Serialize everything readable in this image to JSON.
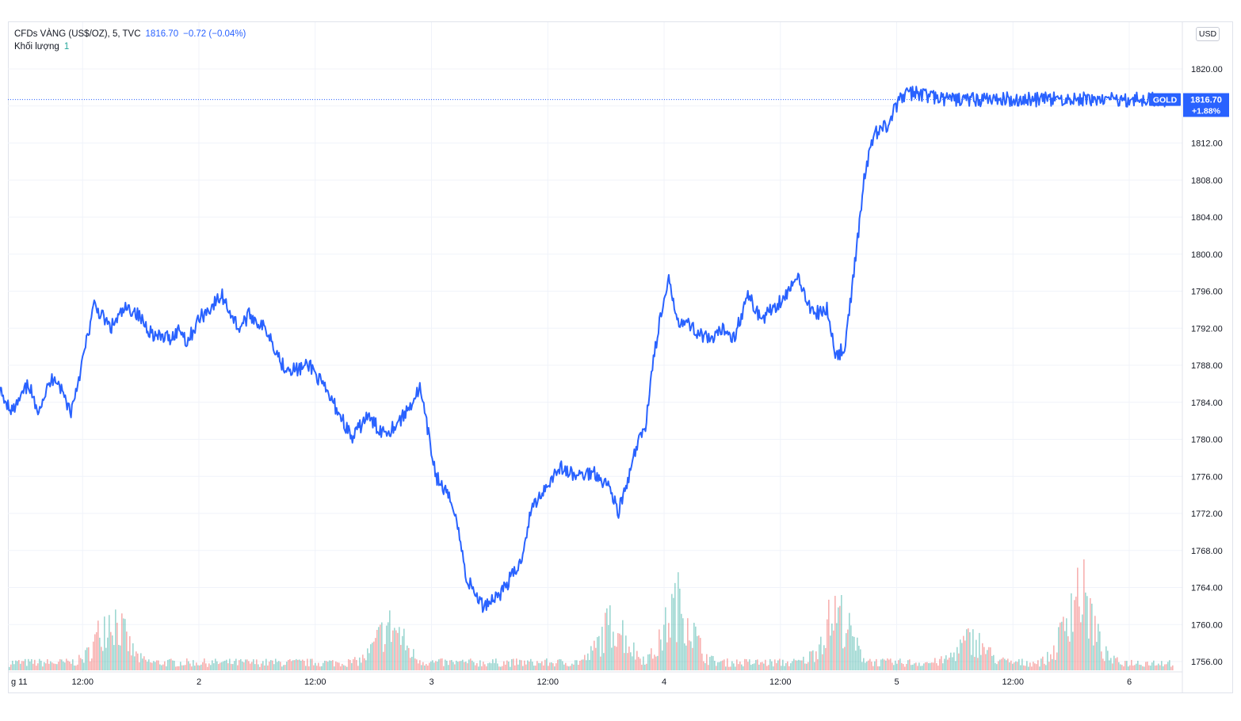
{
  "legend": {
    "symbol": "CFDs VÀNG (US$/OZ), 5, TVC",
    "last": "1816.70",
    "change": "−0.72 (−0.04%)",
    "volume_label": "Khối lượng",
    "volume_value": "1"
  },
  "currency": "USD",
  "price_tag": {
    "symbol": "GOLD",
    "price": "1816.70",
    "change": "+1.88%"
  },
  "colors": {
    "line": "#2962ff",
    "up_volume": "#26a69a",
    "down_volume": "#ef5350",
    "grid": "#f0f3fa"
  },
  "chart_data": {
    "type": "line",
    "title": "CFDs VÀNG (US$/OZ), 5, TVC",
    "xlabel": "",
    "ylabel": "",
    "ylim": [
      1755,
      1824
    ],
    "y_ticks": [
      "1756.00",
      "1760.00",
      "1764.00",
      "1768.00",
      "1772.00",
      "1776.00",
      "1780.00",
      "1784.00",
      "1788.00",
      "1792.00",
      "1796.00",
      "1800.00",
      "1804.00",
      "1808.00",
      "1812.00",
      "1816.00",
      "1820.00"
    ],
    "x_ticks": [
      {
        "label": "g 11",
        "t": 0
      },
      {
        "label": "12:00",
        "t": 0.5
      },
      {
        "label": "2",
        "t": 1
      },
      {
        "label": "12:00",
        "t": 1.5
      },
      {
        "label": "3",
        "t": 2
      },
      {
        "label": "12:00",
        "t": 2.5
      },
      {
        "label": "4",
        "t": 3
      },
      {
        "label": "12:00",
        "t": 3.5
      },
      {
        "label": "5",
        "t": 4
      },
      {
        "label": "12:00",
        "t": 4.5
      },
      {
        "label": "6",
        "t": 5
      }
    ],
    "x_range_days": [
      -0.13,
      5.22
    ],
    "series": [
      {
        "values_t": [
          -0.13,
          -0.06,
          -0.02,
          0.05,
          0.1,
          0.15,
          0.2,
          0.27,
          0.3,
          0.38,
          0.45,
          0.5,
          0.55,
          0.62,
          0.68,
          0.72,
          0.78,
          0.82,
          0.88,
          0.92,
          0.95,
          1.0,
          1.04,
          1.1,
          1.17,
          1.22,
          1.3,
          1.36,
          1.42,
          1.48,
          1.55,
          1.6,
          1.66,
          1.72,
          1.78,
          1.82,
          1.88,
          1.95,
          2.02,
          2.1,
          2.15,
          2.22,
          2.3,
          2.38,
          2.43,
          2.48,
          2.55,
          2.62,
          2.7,
          2.76,
          2.78,
          2.8,
          2.84,
          2.88,
          2.92,
          2.95,
          2.98,
          3.02,
          3.06,
          3.1,
          3.15,
          3.2,
          3.26,
          3.3,
          3.36,
          3.42,
          3.48,
          3.52,
          3.58,
          3.64,
          3.7,
          3.74,
          3.78,
          3.82,
          3.86,
          3.9,
          3.96,
          4.02,
          4.08,
          4.15,
          4.2,
          4.26,
          4.32,
          4.38,
          4.45,
          4.52,
          4.58,
          4.62,
          4.7,
          4.74,
          4.76,
          4.78,
          4.8,
          4.84,
          4.88,
          4.92,
          4.97,
          5.0,
          5.06,
          5.12,
          5.16
        ],
        "values": [
          1783,
          1780.5,
          1782,
          1786.5,
          1784,
          1785,
          1783,
          1786,
          1783,
          1787,
          1783,
          1788.5,
          1794.5,
          1792,
          1794,
          1794,
          1792,
          1791,
          1791,
          1792,
          1790.5,
          1793,
          1794,
          1795.5,
          1792,
          1793.5,
          1791.5,
          1788,
          1787.5,
          1788,
          1785,
          1783,
          1780,
          1782.5,
          1781,
          1781,
          1782.5,
          1785.5,
          1776,
          1772.5,
          1765,
          1762,
          1763.5,
          1766.5,
          1772.5,
          1774.5,
          1777,
          1776,
          1776.5,
          1775,
          1774,
          1772,
          1775,
          1779,
          1781.5,
          1788,
          1792.5,
          1797,
          1793,
          1792.5,
          1791.5,
          1790.5,
          1792,
          1791,
          1795.5,
          1793,
          1794.5,
          1795.5,
          1797.5,
          1793.5,
          1794,
          1789,
          1790,
          1799,
          1808,
          1813,
          1814,
          1817,
          1817.5,
          1817,
          1816.7,
          1816.7,
          1816.7,
          1816.7,
          1816.7,
          1816.7,
          1816.7,
          1816.7,
          1816.7,
          1816.7,
          1816.7,
          1816.7,
          1816.7,
          1816.7,
          1816.7,
          1816.7,
          1816.7,
          1816.7,
          1816.7,
          1816.7,
          1816.7
        ]
      }
    ],
    "last_value": 1816.7
  }
}
